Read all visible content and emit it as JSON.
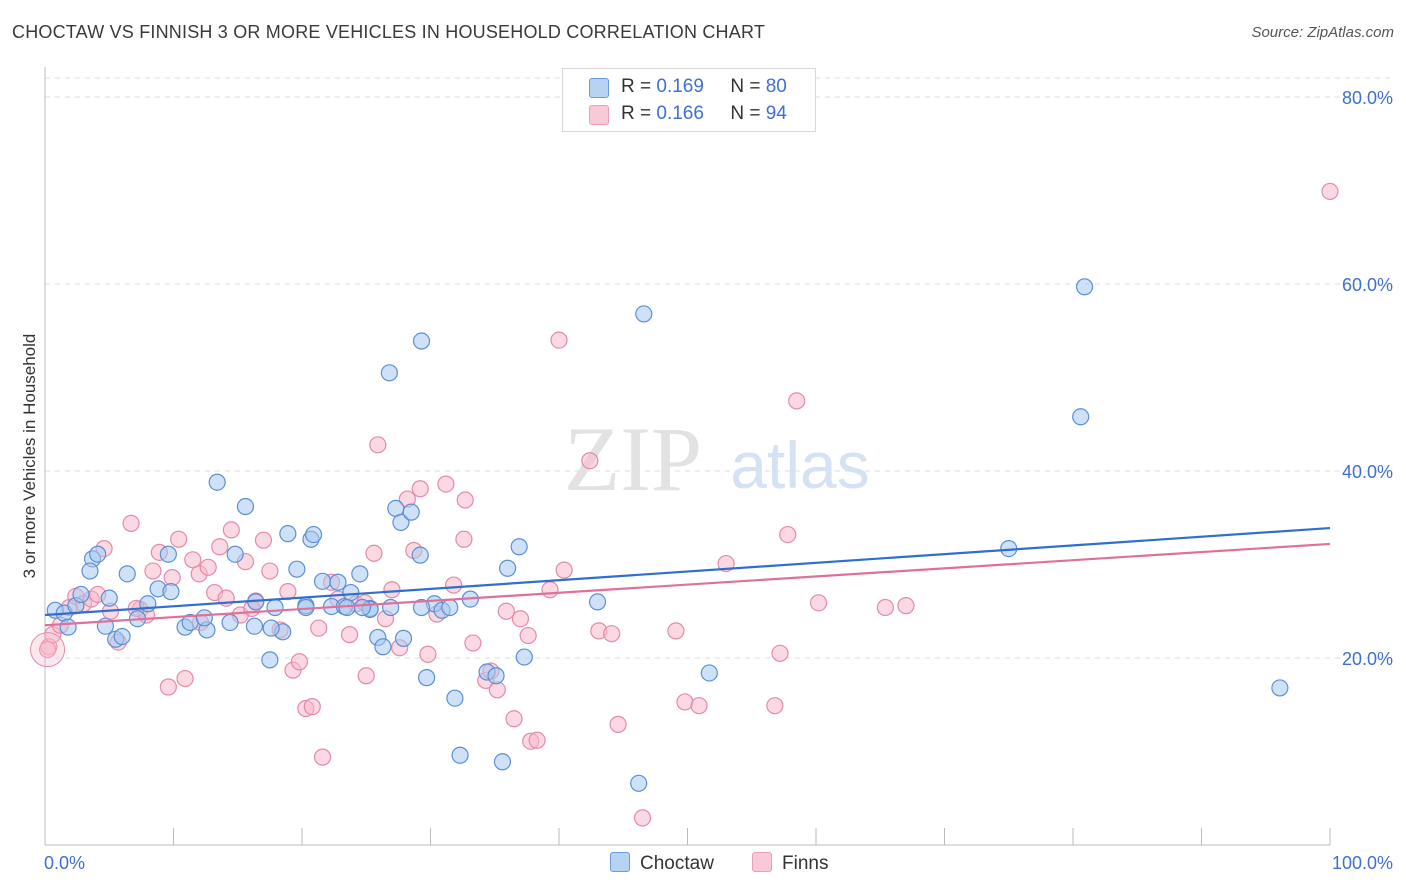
{
  "title": "CHOCTAW VS FINNISH 3 OR MORE VEHICLES IN HOUSEHOLD CORRELATION CHART",
  "source": "Source: ZipAtlas.com",
  "watermark": {
    "zip": "ZIP",
    "atlas": "atlas"
  },
  "legend": {
    "rows": [
      {
        "r_label": "R =",
        "r_value": "0.169",
        "n_label": "N =",
        "n_value": "80"
      },
      {
        "r_label": "R =",
        "r_value": "0.166",
        "n_label": "N =",
        "n_value": "94"
      }
    ]
  },
  "bottom_legend": {
    "choctaw": "Choctaw",
    "finns": "Finns"
  },
  "colors": {
    "choctaw_fill": "#a8c8f0",
    "choctaw_stroke": "#5b8fd6",
    "choctaw_line": "#2f6fcf",
    "finns_fill": "#f7b9cc",
    "finns_stroke": "#e58aa8",
    "finns_line": "#e0709a",
    "tick_label": "#3f6fd1",
    "grid": "#dddddd"
  },
  "chart_data": {
    "type": "scatter",
    "title": "CHOCTAW VS FINNISH 3 OR MORE VEHICLES IN HOUSEHOLD CORRELATION CHART",
    "xlabel": "",
    "ylabel": "3 or more Vehicles in Household",
    "xlim": [
      0,
      100
    ],
    "ylim": [
      0,
      80
    ],
    "x_tick_labels": [
      "0.0%",
      "100.0%"
    ],
    "y_ticks": [
      20,
      40,
      60,
      80
    ],
    "y_tick_labels": [
      "20.0%",
      "40.0%",
      "60.0%",
      "80.0%"
    ],
    "grid": "horizontal dashed",
    "legend_position": "top-center",
    "series": [
      {
        "name": "Choctaw",
        "trend": {
          "x": [
            0,
            100
          ],
          "y": [
            24.6,
            33.9
          ]
        },
        "points": [
          [
            0.8,
            25.1
          ],
          [
            1.5,
            24.8
          ],
          [
            1.8,
            23.3
          ],
          [
            2.4,
            25.6
          ],
          [
            2.8,
            26.8
          ],
          [
            3.7,
            30.6
          ],
          [
            4.1,
            31.1
          ],
          [
            3.5,
            29.3
          ],
          [
            4.7,
            23.4
          ],
          [
            5.0,
            26.4
          ],
          [
            5.5,
            22.0
          ],
          [
            6.0,
            22.3
          ],
          [
            6.4,
            29.0
          ],
          [
            7.2,
            24.2
          ],
          [
            8.0,
            25.8
          ],
          [
            8.8,
            27.4
          ],
          [
            9.6,
            31.1
          ],
          [
            9.8,
            27.1
          ],
          [
            10.9,
            23.3
          ],
          [
            11.3,
            23.8
          ],
          [
            12.6,
            23.0
          ],
          [
            12.4,
            24.3
          ],
          [
            13.4,
            38.8
          ],
          [
            14.4,
            23.8
          ],
          [
            14.8,
            31.1
          ],
          [
            15.6,
            36.2
          ],
          [
            16.3,
            23.4
          ],
          [
            16.4,
            26.0
          ],
          [
            17.5,
            19.8
          ],
          [
            18.5,
            22.8
          ],
          [
            18.9,
            33.3
          ],
          [
            19.6,
            29.5
          ],
          [
            20.3,
            25.6
          ],
          [
            20.7,
            32.7
          ],
          [
            20.9,
            33.2
          ],
          [
            21.6,
            28.2
          ],
          [
            22.3,
            25.5
          ],
          [
            22.8,
            28.1
          ],
          [
            23.3,
            25.5
          ],
          [
            23.8,
            27.0
          ],
          [
            24.5,
            29.0
          ],
          [
            25.3,
            25.3
          ],
          [
            25.9,
            22.2
          ],
          [
            26.3,
            21.2
          ],
          [
            26.8,
            50.5
          ],
          [
            27.3,
            36.0
          ],
          [
            27.7,
            34.5
          ],
          [
            27.9,
            22.1
          ],
          [
            28.5,
            35.6
          ],
          [
            29.2,
            31.0
          ],
          [
            29.3,
            53.9
          ],
          [
            29.7,
            17.9
          ],
          [
            30.3,
            25.8
          ],
          [
            30.9,
            25.1
          ],
          [
            31.9,
            15.7
          ],
          [
            32.3,
            9.6
          ],
          [
            33.1,
            26.3
          ],
          [
            34.4,
            18.5
          ],
          [
            35.1,
            18.1
          ],
          [
            35.6,
            8.9
          ],
          [
            36.0,
            29.6
          ],
          [
            36.9,
            31.9
          ],
          [
            37.3,
            20.1
          ],
          [
            43.0,
            26.0
          ],
          [
            46.2,
            6.6
          ],
          [
            46.6,
            56.8
          ],
          [
            51.7,
            18.4
          ],
          [
            75.0,
            31.7
          ],
          [
            80.6,
            45.8
          ],
          [
            80.9,
            59.7
          ],
          [
            96.1,
            16.8
          ],
          [
            23.5,
            25.4
          ],
          [
            17.6,
            23.2
          ],
          [
            25.3,
            25.2
          ],
          [
            29.3,
            25.4
          ],
          [
            20.3,
            25.4
          ],
          [
            17.9,
            25.4
          ],
          [
            24.7,
            25.4
          ],
          [
            31.5,
            25.4
          ],
          [
            26.9,
            25.4
          ]
        ]
      },
      {
        "name": "Finns",
        "trend": {
          "x": [
            0,
            100
          ],
          "y": [
            23.5,
            32.2
          ]
        },
        "points": [
          [
            0.3,
            21.2
          ],
          [
            0.6,
            22.5
          ],
          [
            1.2,
            23.5
          ],
          [
            1.9,
            25.4
          ],
          [
            2.4,
            26.6
          ],
          [
            3.0,
            25.8
          ],
          [
            3.6,
            26.3
          ],
          [
            4.1,
            26.8
          ],
          [
            4.6,
            31.7
          ],
          [
            5.1,
            25.0
          ],
          [
            5.7,
            21.7
          ],
          [
            6.7,
            34.4
          ],
          [
            7.4,
            25.2
          ],
          [
            7.9,
            24.6
          ],
          [
            8.4,
            29.3
          ],
          [
            8.9,
            31.3
          ],
          [
            9.6,
            16.9
          ],
          [
            9.9,
            28.6
          ],
          [
            10.4,
            32.7
          ],
          [
            10.9,
            17.8
          ],
          [
            11.5,
            30.5
          ],
          [
            12.0,
            29.0
          ],
          [
            12.7,
            29.7
          ],
          [
            13.2,
            27.0
          ],
          [
            13.6,
            31.9
          ],
          [
            14.1,
            26.4
          ],
          [
            14.5,
            33.7
          ],
          [
            15.2,
            24.6
          ],
          [
            15.6,
            30.3
          ],
          [
            16.4,
            26.1
          ],
          [
            17.0,
            32.6
          ],
          [
            17.5,
            29.3
          ],
          [
            18.3,
            23.0
          ],
          [
            18.9,
            27.1
          ],
          [
            19.3,
            18.7
          ],
          [
            19.8,
            19.6
          ],
          [
            20.3,
            14.6
          ],
          [
            20.8,
            14.8
          ],
          [
            21.3,
            23.2
          ],
          [
            21.6,
            9.4
          ],
          [
            22.3,
            28.1
          ],
          [
            22.8,
            26.3
          ],
          [
            23.7,
            22.5
          ],
          [
            24.2,
            25.8
          ],
          [
            25.0,
            18.1
          ],
          [
            25.6,
            31.2
          ],
          [
            25.9,
            42.8
          ],
          [
            26.5,
            24.2
          ],
          [
            27.0,
            27.3
          ],
          [
            27.6,
            21.1
          ],
          [
            28.2,
            37.0
          ],
          [
            28.7,
            31.5
          ],
          [
            29.2,
            38.1
          ],
          [
            29.8,
            20.4
          ],
          [
            30.5,
            24.7
          ],
          [
            31.2,
            38.6
          ],
          [
            31.8,
            27.8
          ],
          [
            32.6,
            32.7
          ],
          [
            32.7,
            36.9
          ],
          [
            34.3,
            17.6
          ],
          [
            34.7,
            18.6
          ],
          [
            35.2,
            16.6
          ],
          [
            35.9,
            25.0
          ],
          [
            36.5,
            13.5
          ],
          [
            37.0,
            24.2
          ],
          [
            37.6,
            22.4
          ],
          [
            37.8,
            11.1
          ],
          [
            38.3,
            11.2
          ],
          [
            39.3,
            27.3
          ],
          [
            40.0,
            54.0
          ],
          [
            40.4,
            29.4
          ],
          [
            42.4,
            41.1
          ],
          [
            43.1,
            22.9
          ],
          [
            44.1,
            22.6
          ],
          [
            44.6,
            12.9
          ],
          [
            46.5,
            2.9
          ],
          [
            49.1,
            22.9
          ],
          [
            49.8,
            15.3
          ],
          [
            50.9,
            14.9
          ],
          [
            53.0,
            30.1
          ],
          [
            56.8,
            14.9
          ],
          [
            57.2,
            20.5
          ],
          [
            57.8,
            33.2
          ],
          [
            58.5,
            47.5
          ],
          [
            60.2,
            25.9
          ],
          [
            65.4,
            25.4
          ],
          [
            67.0,
            25.6
          ],
          [
            100.0,
            69.9
          ],
          [
            0.2,
            20.9
          ],
          [
            7.1,
            25.3
          ],
          [
            12.1,
            23.8
          ],
          [
            16.1,
            25.3
          ],
          [
            24.9,
            25.9
          ],
          [
            33.3,
            21.6
          ]
        ]
      }
    ]
  }
}
